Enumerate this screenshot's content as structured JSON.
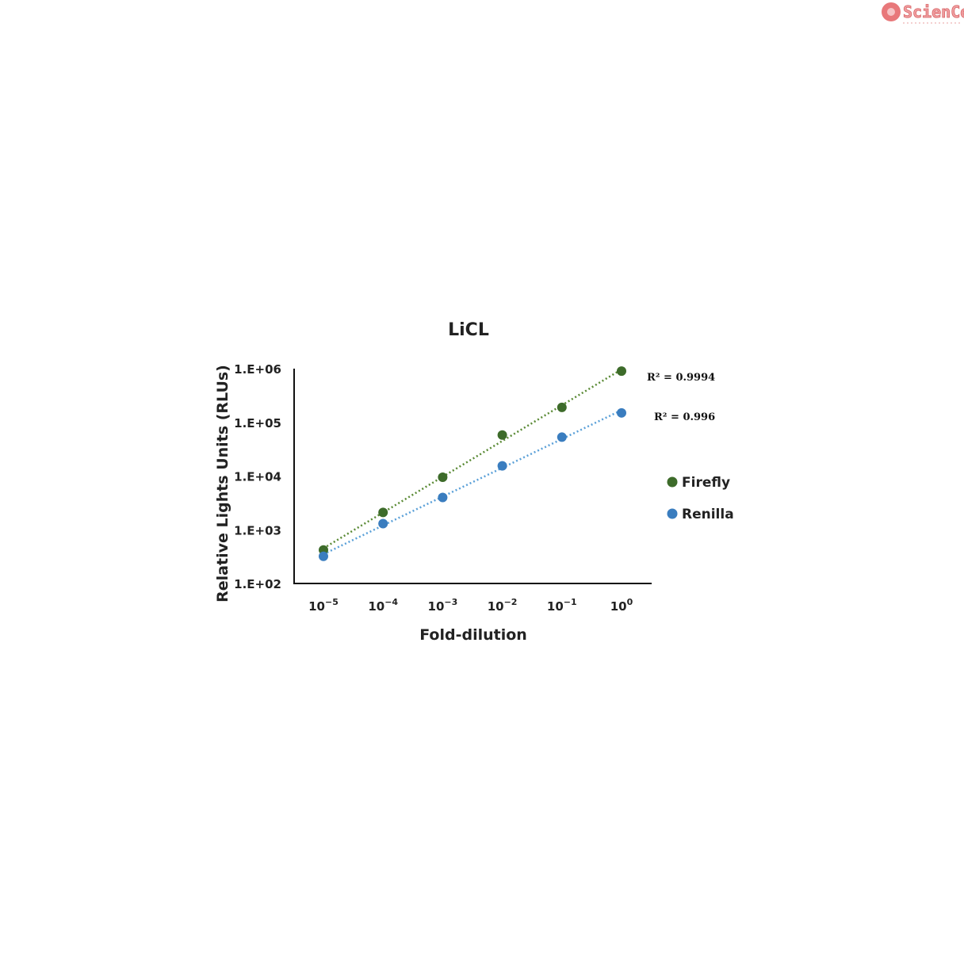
{
  "logo": {
    "text": "ScienCell",
    "color": "#e8787a"
  },
  "chart_data": {
    "type": "scatter",
    "title": "LiCL",
    "xlabel": "Fold-dilution",
    "ylabel": "Relative Lights Units (RLUs)",
    "x_scale": "log",
    "y_scale": "log",
    "x": [
      1e-05,
      0.0001,
      0.001,
      0.01,
      0.1,
      1
    ],
    "x_tick_labels": [
      {
        "base": "10",
        "exp": "−5"
      },
      {
        "base": "10",
        "exp": "−4"
      },
      {
        "base": "10",
        "exp": "−3"
      },
      {
        "base": "10",
        "exp": "−2"
      },
      {
        "base": "10",
        "exp": "−1"
      },
      {
        "base": "10",
        "exp": "0"
      }
    ],
    "y_ticks": [
      100,
      1000,
      10000,
      100000,
      1000000
    ],
    "y_tick_labels": [
      "1.E+02",
      "1.E+03",
      "1.E+04",
      "1.E+05",
      "1.E+06"
    ],
    "ylim": [
      100,
      1000000
    ],
    "grid": false,
    "legend_position": "right",
    "series": [
      {
        "name": "Firefly",
        "color": "#3d6b2a",
        "trend_color": "#5a8a35",
        "values": [
          420,
          2100,
          9500,
          58000,
          190000,
          900000
        ],
        "r2_label": "R² = 0.9994"
      },
      {
        "name": "Renilla",
        "color": "#3a7dbf",
        "trend_color": "#5aa0d8",
        "values": [
          320,
          1300,
          4000,
          15500,
          53000,
          150000
        ],
        "r2_label": "R² = 0.996"
      }
    ]
  }
}
